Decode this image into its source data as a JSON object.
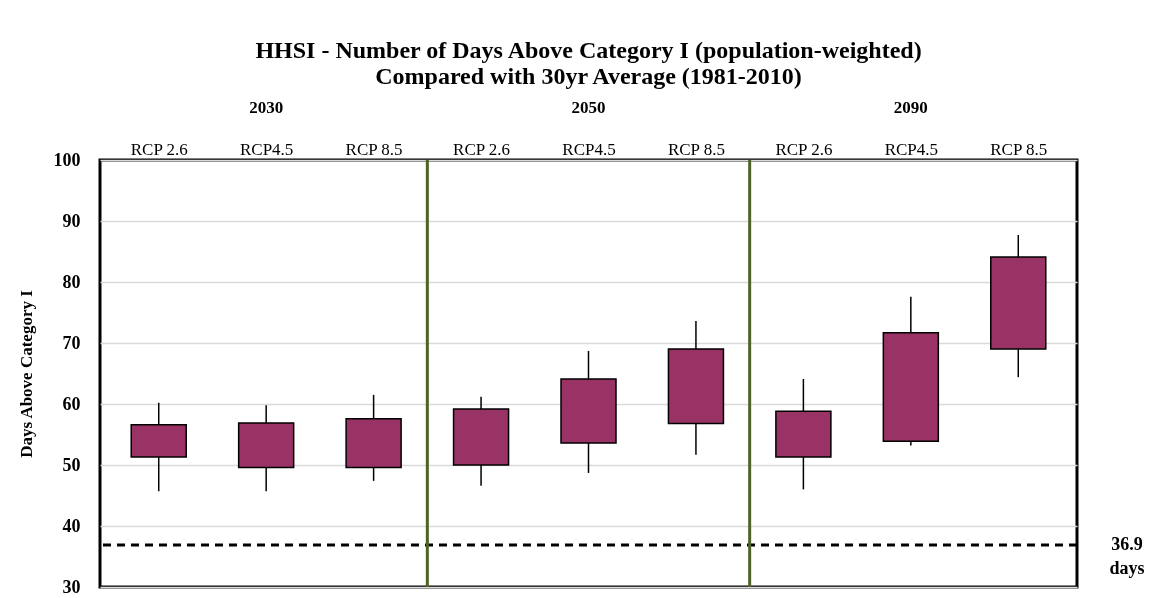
{
  "chart_data": {
    "type": "candlestick",
    "title": "HHSI - Number of Days Above Category I (population-weighted)",
    "subtitle": "Compared with 30yr Average (1981-2010)",
    "ylabel": "Days Above Category I",
    "categories": [
      "RCP 2.6",
      "RCP4.5",
      "RCP 8.5",
      "RCP 2.6",
      "RCP4.5",
      "RCP 8.5",
      "RCP 2.6",
      "RCP4.5",
      "RCP 8.5"
    ],
    "series": [
      {
        "color": "#993366",
        "ohlc": [
          [
            51.3,
            60.2,
            45.7,
            56.6
          ],
          [
            49.6,
            59.8,
            45.7,
            56.9
          ],
          [
            49.6,
            61.5,
            47.4,
            57.6
          ],
          [
            50.0,
            61.2,
            46.6,
            59.2
          ],
          [
            53.6,
            68.7,
            48.7,
            64.1
          ],
          [
            56.8,
            73.6,
            51.7,
            69.0
          ],
          [
            51.3,
            64.1,
            46.0,
            58.8
          ],
          [
            53.9,
            77.6,
            53.2,
            71.7
          ],
          [
            69.0,
            87.7,
            64.4,
            84.1
          ]
        ]
      }
    ],
    "annotations": [
      "2030",
      "2050",
      "2090"
    ],
    "ref_lines": [
      {
        "axis": "y",
        "value": 36.9,
        "label": "36.9 days",
        "color": "#000000",
        "line_style": "dashed"
      }
    ],
    "ylim": [
      30,
      100
    ],
    "yticks": [
      30,
      40,
      50,
      60,
      70,
      80,
      90,
      100
    ],
    "grid": "y"
  }
}
